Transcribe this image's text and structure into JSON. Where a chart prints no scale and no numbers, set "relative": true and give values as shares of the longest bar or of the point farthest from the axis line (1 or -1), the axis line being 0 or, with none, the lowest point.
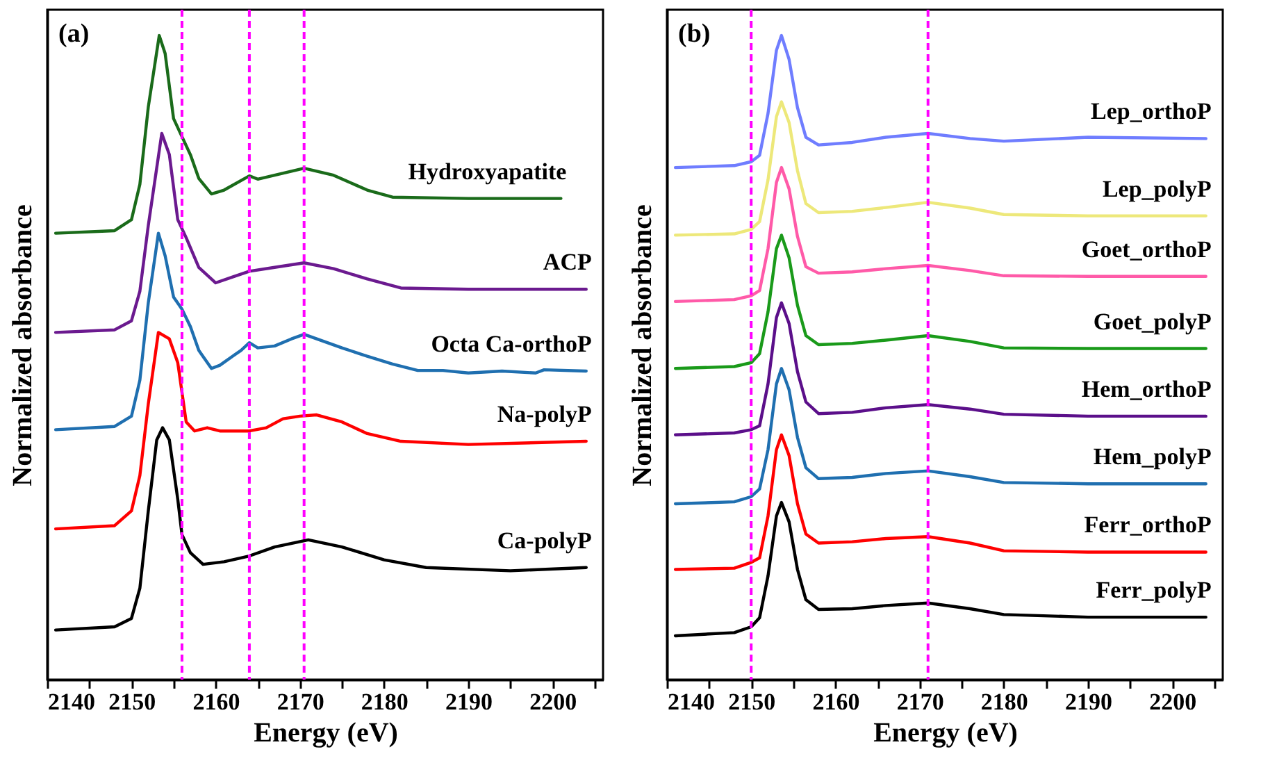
{
  "chart_data": [
    {
      "type": "line",
      "title": "(a)",
      "xlabel": "Energy (eV)",
      "ylabel": "Normalized absorbance",
      "relative": true,
      "xlim": [
        2140,
        2206
      ],
      "xticks": [
        2140,
        {
          "value": 2145,
          "label": null
        },
        2150,
        {
          "value": 2155,
          "label": null
        },
        2160,
        {
          "value": 2165,
          "label": null
        },
        2170,
        {
          "value": 2175,
          "label": null
        },
        2180,
        {
          "value": 2185,
          "label": null
        },
        2190,
        {
          "value": 2195,
          "label": null
        },
        2200,
        {
          "value": 2205,
          "label": null
        }
      ],
      "series": [
        {
          "name": "Hydroxyapatite",
          "color": "#1a6b1a",
          "x": [
            2141,
            2148,
            2150,
            2151,
            2152,
            2153.3,
            2154,
            2155,
            2156,
            2157,
            2158,
            2159.5,
            2161,
            2164,
            2165,
            2167,
            2170.5,
            2174,
            2178,
            2181,
            2190,
            2201
          ],
          "values": [
            0.693,
            0.697,
            0.714,
            0.769,
            0.889,
            1.0,
            0.972,
            0.871,
            0.843,
            0.815,
            0.778,
            0.754,
            0.76,
            0.782,
            0.777,
            0.783,
            0.794,
            0.783,
            0.76,
            0.749,
            0.747,
            0.747
          ]
        },
        {
          "name": "ACP",
          "color": "#6b1a8f",
          "x": [
            2141,
            2148,
            2150,
            2151,
            2152,
            2153.6,
            2154.5,
            2155.5,
            2156.5,
            2158,
            2160,
            2162,
            2164,
            2167,
            2170.5,
            2174,
            2178,
            2182,
            2190,
            2204
          ],
          "values": [
            0.539,
            0.543,
            0.557,
            0.603,
            0.705,
            0.848,
            0.815,
            0.714,
            0.686,
            0.64,
            0.616,
            0.625,
            0.634,
            0.64,
            0.647,
            0.638,
            0.622,
            0.608,
            0.606,
            0.606
          ]
        },
        {
          "name": "Octa Ca-orthoP",
          "color": "#1f6fb0",
          "x": [
            2141,
            2148,
            2150,
            2151,
            2152,
            2153.2,
            2154,
            2155,
            2156,
            2157,
            2158,
            2159.5,
            2160.5,
            2162,
            2163,
            2164,
            2165,
            2167,
            2169,
            2170.5,
            2172,
            2175,
            2178,
            2181,
            2184,
            2187,
            2190,
            2194,
            2198,
            2199,
            2204
          ],
          "values": [
            0.388,
            0.393,
            0.409,
            0.465,
            0.585,
            0.693,
            0.658,
            0.594,
            0.575,
            0.548,
            0.511,
            0.483,
            0.488,
            0.502,
            0.511,
            0.523,
            0.515,
            0.518,
            0.529,
            0.536,
            0.529,
            0.515,
            0.502,
            0.49,
            0.48,
            0.48,
            0.476,
            0.479,
            0.476,
            0.481,
            0.479
          ]
        },
        {
          "name": "Na-polyP",
          "color": "#ff0000",
          "x": [
            2141,
            2148,
            2150,
            2151,
            2152,
            2153.2,
            2154.5,
            2155.5,
            2156.5,
            2157.5,
            2159,
            2160.5,
            2164,
            2166,
            2168,
            2170,
            2172,
            2175,
            2178,
            2182,
            2190,
            2204
          ],
          "values": [
            0.234,
            0.239,
            0.262,
            0.317,
            0.428,
            0.539,
            0.529,
            0.492,
            0.4,
            0.386,
            0.391,
            0.386,
            0.386,
            0.391,
            0.405,
            0.409,
            0.411,
            0.4,
            0.382,
            0.37,
            0.365,
            0.37
          ]
        },
        {
          "name": "Ca-polyP",
          "color": "#000000",
          "x": [
            2141,
            2148,
            2150,
            2151,
            2152,
            2153,
            2153.7,
            2154.5,
            2155.5,
            2156,
            2157,
            2158.5,
            2161,
            2164,
            2167,
            2171,
            2175,
            2180,
            2185,
            2195,
            2204
          ],
          "values": [
            0.077,
            0.082,
            0.095,
            0.142,
            0.262,
            0.372,
            0.391,
            0.372,
            0.28,
            0.225,
            0.197,
            0.179,
            0.183,
            0.192,
            0.206,
            0.217,
            0.206,
            0.186,
            0.174,
            0.169,
            0.174
          ]
        }
      ],
      "ref_lines": [
        {
          "axis": "x",
          "value": 2156,
          "color": "#ff00ff",
          "line_style": "dashed"
        },
        {
          "axis": "x",
          "value": 2164,
          "color": "#ff00ff",
          "line_style": "dashed"
        },
        {
          "axis": "x",
          "value": 2170.5,
          "color": "#ff00ff",
          "line_style": "dashed"
        }
      ]
    },
    {
      "type": "line",
      "title": "(b)",
      "xlabel": "Energy (eV)",
      "ylabel": "Normalized absorbance",
      "relative": true,
      "xlim": [
        2140,
        2206
      ],
      "xticks": [
        2140,
        {
          "value": 2145,
          "label": null
        },
        2150,
        {
          "value": 2155,
          "label": null
        },
        2160,
        {
          "value": 2165,
          "label": null
        },
        2170,
        {
          "value": 2175,
          "label": null
        },
        2180,
        {
          "value": 2185,
          "label": null
        },
        2190,
        {
          "value": 2195,
          "label": null
        },
        2200,
        {
          "value": 2205,
          "label": null
        }
      ],
      "x": [
        2141,
        2148,
        2150,
        2151,
        2152,
        2153,
        2153.6,
        2154.5,
        2155.5,
        2156.5,
        2158,
        2162,
        2166,
        2171,
        2176,
        2180,
        2190,
        2204
      ],
      "series": [
        {
          "name": "Lep_orthoP",
          "color": "#6f7dff",
          "values": [
            0.795,
            0.798,
            0.804,
            0.814,
            0.879,
            0.977,
            1.0,
            0.963,
            0.888,
            0.842,
            0.83,
            0.834,
            0.842,
            0.848,
            0.84,
            0.836,
            0.842,
            0.84
          ]
        },
        {
          "name": "Lep_polyP",
          "color": "#ede87a",
          "values": [
            0.69,
            0.692,
            0.699,
            0.711,
            0.776,
            0.874,
            0.897,
            0.865,
            0.79,
            0.739,
            0.725,
            0.727,
            0.733,
            0.741,
            0.732,
            0.722,
            0.72,
            0.72
          ]
        },
        {
          "name": "Goet_orthoP",
          "color": "#ff5aa8",
          "values": [
            0.587,
            0.59,
            0.596,
            0.604,
            0.669,
            0.772,
            0.795,
            0.762,
            0.688,
            0.641,
            0.631,
            0.633,
            0.638,
            0.643,
            0.635,
            0.627,
            0.626,
            0.626
          ]
        },
        {
          "name": "Goet_polyP",
          "color": "#1a9a1a",
          "values": [
            0.483,
            0.486,
            0.492,
            0.506,
            0.571,
            0.669,
            0.69,
            0.655,
            0.581,
            0.534,
            0.52,
            0.522,
            0.527,
            0.534,
            0.525,
            0.515,
            0.514,
            0.514
          ]
        },
        {
          "name": "Hem_orthoP",
          "color": "#5b0f8a",
          "values": [
            0.38,
            0.383,
            0.388,
            0.394,
            0.459,
            0.562,
            0.585,
            0.553,
            0.478,
            0.431,
            0.413,
            0.415,
            0.422,
            0.427,
            0.42,
            0.412,
            0.409,
            0.409
          ]
        },
        {
          "name": "Hem_polyP",
          "color": "#1f6fb0",
          "values": [
            0.273,
            0.276,
            0.284,
            0.296,
            0.357,
            0.459,
            0.483,
            0.45,
            0.376,
            0.329,
            0.312,
            0.314,
            0.32,
            0.324,
            0.315,
            0.306,
            0.304,
            0.304
          ]
        },
        {
          "name": "Ferr_orthoP",
          "color": "#ff0000",
          "values": [
            0.171,
            0.173,
            0.182,
            0.189,
            0.254,
            0.357,
            0.38,
            0.348,
            0.273,
            0.226,
            0.212,
            0.214,
            0.219,
            0.222,
            0.212,
            0.2,
            0.198,
            0.198
          ]
        },
        {
          "name": "Ferr_polyP",
          "color": "#000000",
          "values": [
            0.068,
            0.073,
            0.082,
            0.096,
            0.161,
            0.254,
            0.275,
            0.245,
            0.171,
            0.124,
            0.109,
            0.11,
            0.115,
            0.119,
            0.11,
            0.101,
            0.097,
            0.097
          ]
        }
      ],
      "ref_lines": [
        {
          "axis": "x",
          "value": 2150,
          "color": "#ff00ff",
          "line_style": "dashed"
        },
        {
          "axis": "x",
          "value": 2171,
          "color": "#ff00ff",
          "line_style": "dashed"
        }
      ]
    }
  ]
}
